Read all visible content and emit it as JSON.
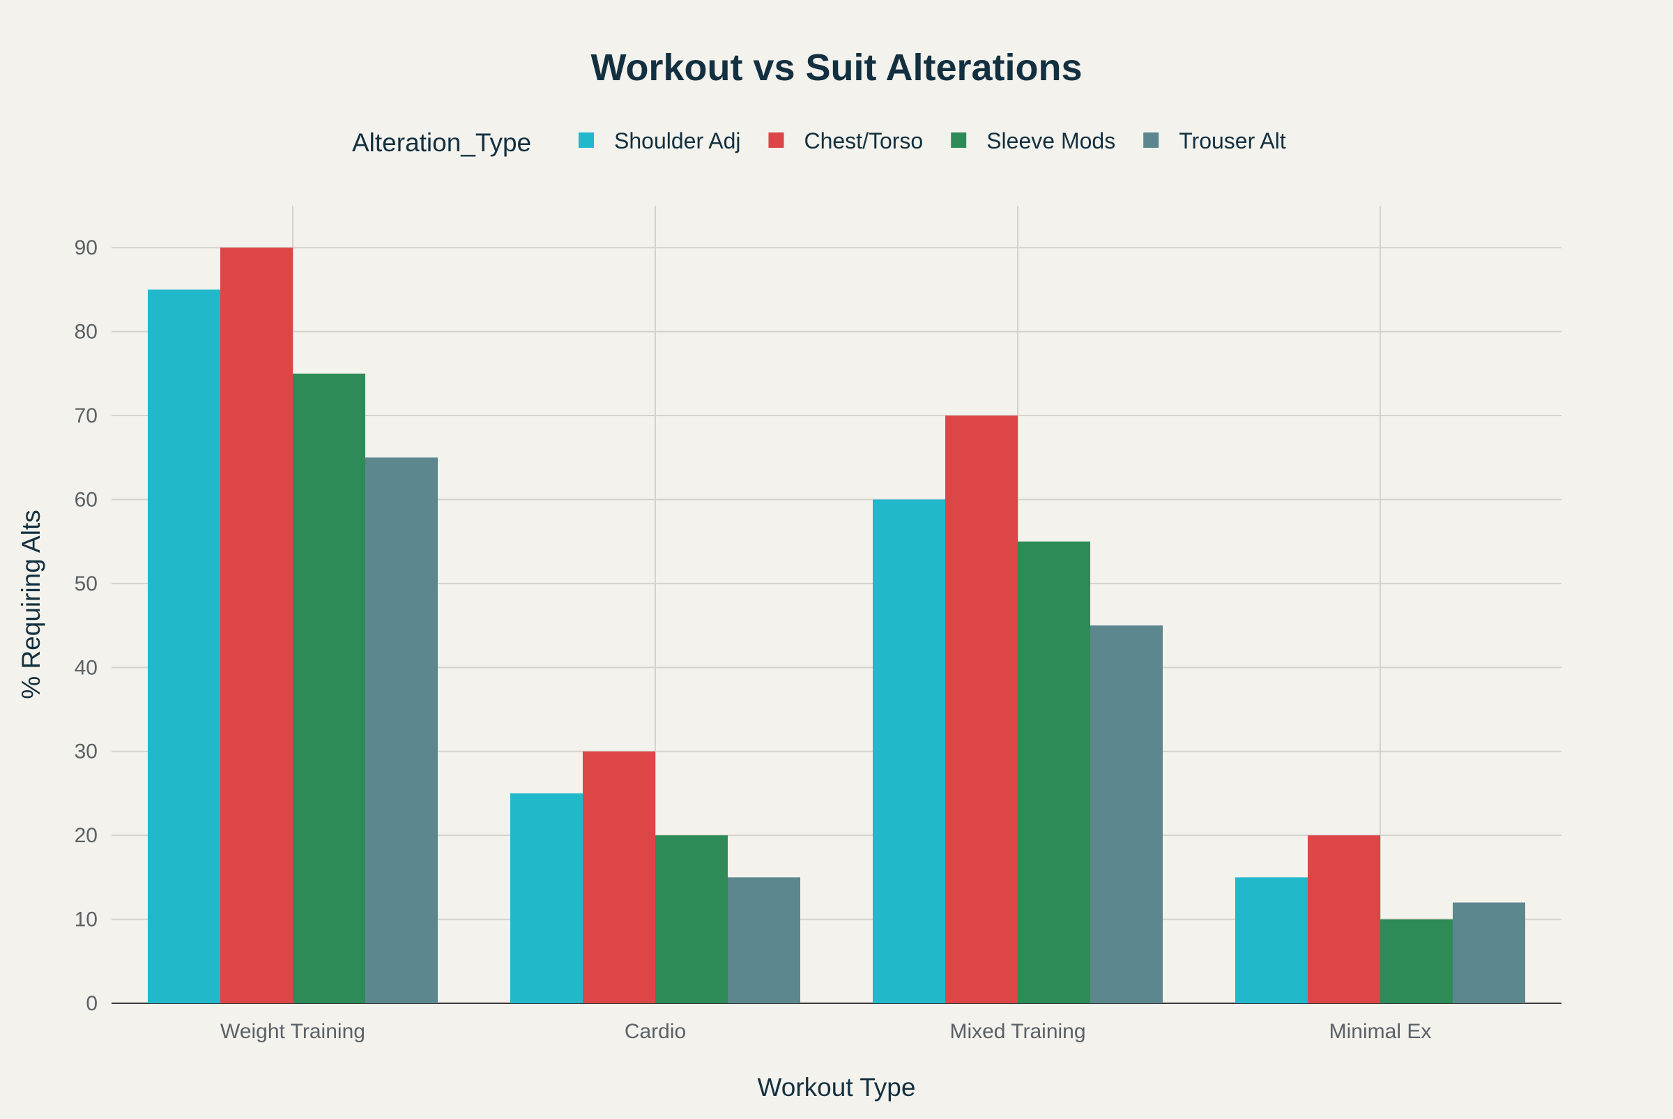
{
  "chart_data": {
    "type": "bar",
    "title": "Workout vs Suit Alterations",
    "xlabel": "Workout Type",
    "ylabel": "% Requiring Alts",
    "legend_title": "Alteration_Type",
    "legend_position": "top",
    "categories": [
      "Weight Training",
      "Cardio",
      "Mixed Training",
      "Minimal Ex"
    ],
    "series": [
      {
        "name": "Shoulder Adj",
        "color": "#21b8cc",
        "values": [
          85,
          25,
          60,
          15
        ]
      },
      {
        "name": "Chest/Torso",
        "color": "#dc4647",
        "values": [
          90,
          30,
          70,
          20
        ]
      },
      {
        "name": "Sleeve Mods",
        "color": "#2e8a57",
        "values": [
          75,
          20,
          55,
          10
        ]
      },
      {
        "name": "Trouser Alt",
        "color": "#5d878f",
        "values": [
          65,
          15,
          45,
          12
        ]
      }
    ],
    "ylim": [
      0,
      95
    ],
    "yticks": [
      0,
      10,
      20,
      30,
      40,
      50,
      60,
      70,
      80,
      90
    ],
    "grid": true,
    "background": "#f3f2ec"
  }
}
